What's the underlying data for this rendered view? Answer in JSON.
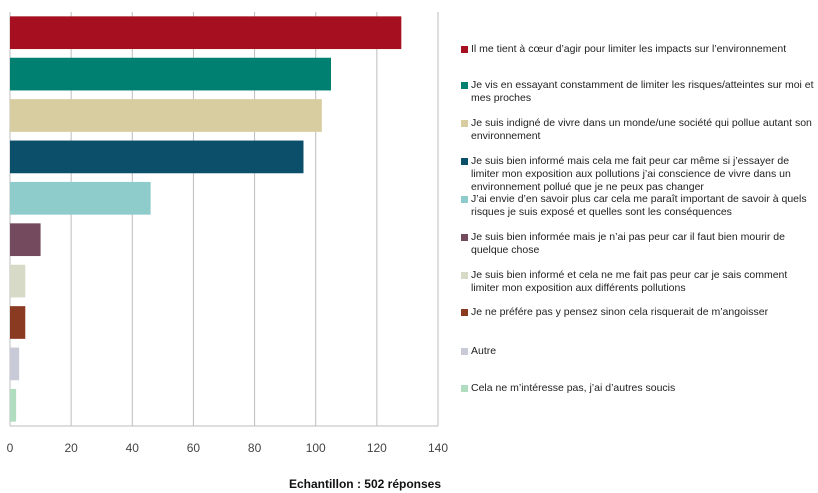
{
  "chart_data": {
    "type": "bar",
    "orientation": "horizontal",
    "categories": [
      "Il me tient à cœur d’agir pour limiter les impacts sur l’environnement",
      "Je vis en essayant constamment de limiter les risques/atteintes sur moi et mes proches",
      "Je suis indigné de vivre dans un monde/une société qui pollue autant son environnement",
      "Je suis bien informé mais cela me fait peur car même si j’essayer de limiter mon exposition aux pollutions j’ai conscience de vivre dans un environnement pollué que je ne peux pas changer",
      "J’ai envie d’en savoir plus car cela me paraît important de savoir à quels risques je suis exposé et quelles sont les conséquences",
      "Je suis bien informée mais je n’ai pas peur car il faut bien mourir de quelque chose",
      "Je suis bien informé et cela ne me fait pas peur car je sais comment limiter mon exposition aux différents pollutions",
      "Je ne préfére pas y pensez sinon cela risquerait de m’angoisser",
      "Autre",
      "Cela ne m’intéresse pas, j’ai d’autres soucis"
    ],
    "values": [
      128,
      105,
      102,
      96,
      46,
      10,
      5,
      5,
      3,
      2
    ],
    "colors": [
      "#a50f1f",
      "#008070",
      "#d8cda0",
      "#0b4f6a",
      "#8ecbcb",
      "#734a5e",
      "#d8dac8",
      "#8b3a22",
      "#c8cad8",
      "#b0dcc0"
    ],
    "xticks": [
      "0",
      "20",
      "40",
      "60",
      "80",
      "100",
      "120",
      "140"
    ],
    "xlim": [
      0,
      140
    ],
    "grid": true,
    "legend_position": "right",
    "caption": "Echantillon : 502 réponses"
  }
}
